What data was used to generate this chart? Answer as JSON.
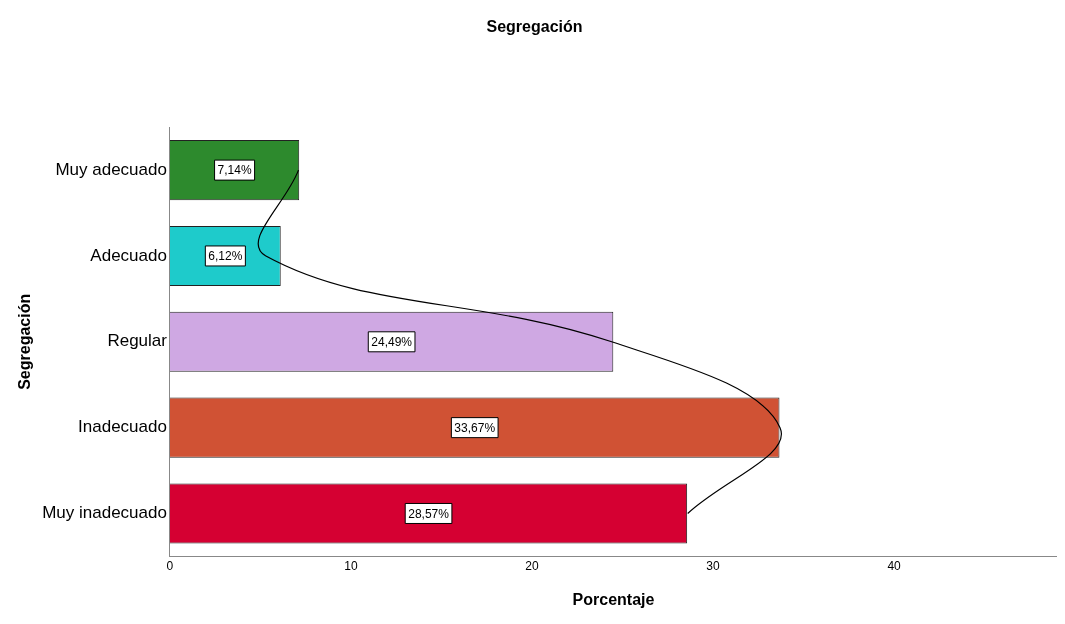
{
  "chart_data": {
    "type": "bar",
    "orientation": "horizontal",
    "title": "Segregación",
    "xlabel": "Porcentaje",
    "ylabel": "Segregación",
    "categories": [
      "Muy adecuado",
      "Adecuado",
      "Regular",
      "Inadecuado",
      "Muy inadecuado"
    ],
    "series": [
      {
        "colors": [
          "#2d8a2d",
          "#1ecbcb",
          "#cfa8e3",
          "#d05234",
          "#d50032"
        ],
        "values": [
          7.14,
          6.12,
          24.49,
          33.67,
          28.57
        ],
        "value_labels": [
          "7,14%",
          "6,12%",
          "24,49%",
          "33,67%",
          "28,57%"
        ]
      },
      {
        "type": "line",
        "color": "#000000",
        "values": [
          7.1,
          5.3,
          24.4,
          33.7,
          28.6
        ],
        "marker": "none"
      }
    ],
    "xlim": [
      0,
      49
    ],
    "xticks": [
      0,
      10,
      20,
      30,
      40
    ],
    "grid": false,
    "legend": false
  }
}
